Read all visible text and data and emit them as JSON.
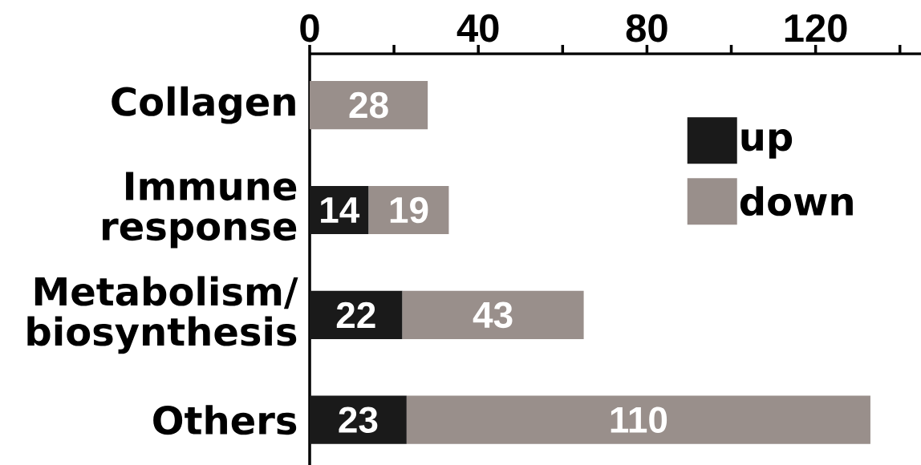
{
  "chart_data": {
    "type": "bar",
    "orientation": "horizontal",
    "stacked": true,
    "categories": [
      "Collagen",
      "Immune response",
      "Metabolism/biosynthesis",
      "Others"
    ],
    "series": [
      {
        "name": "up",
        "color": "#1a1a1a",
        "values": [
          null,
          14,
          22,
          23
        ]
      },
      {
        "name": "down",
        "color": "#998f8b",
        "values": [
          28,
          19,
          43,
          110
        ]
      }
    ],
    "xlim": [
      0,
      145
    ],
    "xticks": [
      0,
      {
        "value": 20,
        "label": null
      },
      40,
      {
        "value": 60,
        "label": null
      },
      80,
      {
        "value": 100,
        "label": null
      },
      120,
      {
        "value": 140,
        "label": null
      }
    ],
    "data_labels": true,
    "legend": "top right"
  }
}
